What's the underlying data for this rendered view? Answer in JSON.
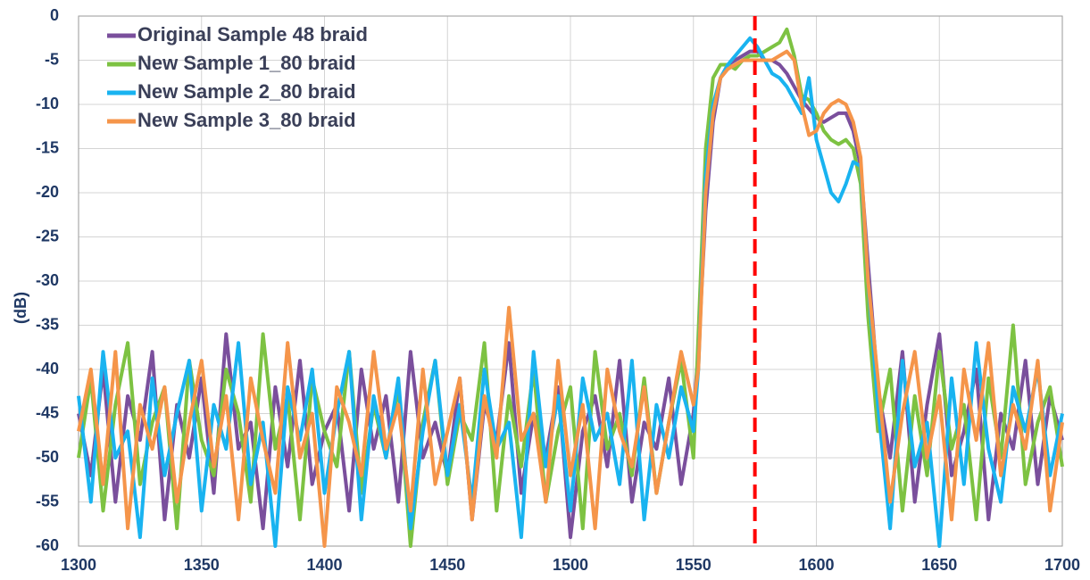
{
  "chart_data": {
    "type": "line",
    "y_label": "(dB)",
    "x": [
      1300,
      1305,
      1310,
      1315,
      1320,
      1325,
      1330,
      1335,
      1340,
      1345,
      1350,
      1355,
      1360,
      1365,
      1370,
      1375,
      1380,
      1385,
      1390,
      1395,
      1400,
      1405,
      1410,
      1415,
      1420,
      1425,
      1430,
      1435,
      1440,
      1445,
      1450,
      1455,
      1460,
      1465,
      1470,
      1475,
      1480,
      1485,
      1490,
      1495,
      1500,
      1505,
      1510,
      1515,
      1520,
      1525,
      1530,
      1535,
      1540,
      1545,
      1550,
      1552,
      1555,
      1558,
      1561,
      1564,
      1567,
      1570,
      1573,
      1576,
      1579,
      1582,
      1585,
      1588,
      1591,
      1594,
      1597,
      1600,
      1603,
      1606,
      1609,
      1612,
      1615,
      1618,
      1621,
      1625,
      1630,
      1635,
      1640,
      1645,
      1650,
      1655,
      1660,
      1665,
      1670,
      1675,
      1680,
      1685,
      1690,
      1695,
      1700
    ],
    "series": [
      {
        "name": "Original Sample 48 braid",
        "color": "#7a4f9c",
        "values": [
          -45,
          -52,
          -40,
          -55,
          -43,
          -48,
          -38,
          -57,
          -44,
          -50,
          -41,
          -54,
          -36,
          -49,
          -46,
          -58,
          -42,
          -51,
          -39,
          -53,
          -47,
          -44,
          -56,
          -40,
          -49,
          -43,
          -55,
          -38,
          -50,
          -46,
          -52,
          -41,
          -57,
          -44,
          -48,
          -37,
          -54,
          -45,
          -50,
          -42,
          -59,
          -47,
          -43,
          -51,
          -39,
          -55,
          -46,
          -49,
          -41,
          -53,
          -45,
          -38,
          -22,
          -12,
          -7,
          -5.5,
          -5,
          -4.5,
          -4,
          -4,
          -5,
          -5,
          -5.5,
          -6.5,
          -8,
          -9.5,
          -10.5,
          -11.5,
          -12,
          -11.5,
          -11,
          -11,
          -13,
          -17,
          -28,
          -42,
          -50,
          -38,
          -55,
          -44,
          -36,
          -52,
          -47,
          -40,
          -57,
          -45,
          -49,
          -39,
          -53,
          -43,
          -48
        ]
      },
      {
        "name": "New Sample 1_80 braid",
        "color": "#7dc242",
        "values": [
          -50,
          -41,
          -56,
          -44,
          -37,
          -53,
          -46,
          -42,
          -58,
          -39,
          -48,
          -52,
          -40,
          -45,
          -55,
          -36,
          -49,
          -43,
          -57,
          -41,
          -47,
          -51,
          -38,
          -54,
          -44,
          -50,
          -42,
          -60,
          -46,
          -39,
          -53,
          -45,
          -48,
          -37,
          -56,
          -43,
          -51,
          -40,
          -55,
          -47,
          -42,
          -58,
          -38,
          -49,
          -45,
          -52,
          -41,
          -54,
          -46,
          -39,
          -50,
          -36,
          -15,
          -7,
          -5.5,
          -5.5,
          -6,
          -5,
          -4.5,
          -4.5,
          -4,
          -3.5,
          -3,
          -1.5,
          -4.5,
          -9,
          -9.5,
          -11,
          -13,
          -14,
          -14.5,
          -14,
          -15,
          -19,
          -34,
          -47,
          -40,
          -56,
          -43,
          -52,
          -38,
          -49,
          -44,
          -57,
          -41,
          -50,
          -35,
          -53,
          -46,
          -42,
          -51
        ]
      },
      {
        "name": "New Sample 2_80 braid",
        "color": "#19b3f0",
        "values": [
          -43,
          -55,
          -38,
          -50,
          -47,
          -59,
          -41,
          -52,
          -45,
          -39,
          -56,
          -44,
          -49,
          -37,
          -53,
          -46,
          -60,
          -42,
          -48,
          -40,
          -54,
          -45,
          -38,
          -57,
          -43,
          -50,
          -41,
          -58,
          -47,
          -39,
          -52,
          -44,
          -55,
          -40,
          -49,
          -46,
          -59,
          -38,
          -51,
          -43,
          -56,
          -41,
          -48,
          -45,
          -53,
          -39,
          -57,
          -44,
          -50,
          -42,
          -47,
          -40,
          -18,
          -10,
          -7,
          -5.5,
          -4.5,
          -3.5,
          -2.5,
          -3.5,
          -5,
          -6.5,
          -7,
          -8,
          -9.5,
          -11,
          -7,
          -14,
          -17,
          -20,
          -21,
          -19,
          -16.5,
          -17,
          -30,
          -44,
          -58,
          -39,
          -51,
          -46,
          -60,
          -41,
          -53,
          -37,
          -49,
          -55,
          -42,
          -47,
          -40,
          -52,
          -45
        ]
      },
      {
        "name": "New Sample 3_80 braid",
        "color": "#f5954a",
        "values": [
          -47,
          -40,
          -53,
          -38,
          -58,
          -44,
          -49,
          -42,
          -55,
          -46,
          -39,
          -51,
          -43,
          -57,
          -41,
          -48,
          -54,
          -37,
          -50,
          -45,
          -60,
          -42,
          -46,
          -52,
          -38,
          -49,
          -44,
          -56,
          -40,
          -53,
          -47,
          -41,
          -57,
          -43,
          -50,
          -33,
          -48,
          -45,
          -55,
          -39,
          -52,
          -44,
          -58,
          -40,
          -47,
          -51,
          -42,
          -54,
          -46,
          -38,
          -44,
          -40,
          -20,
          -11,
          -7,
          -6,
          -5.5,
          -5,
          -5,
          -5,
          -5,
          -5,
          -4.5,
          -4,
          -5,
          -10,
          -13.5,
          -13,
          -11,
          -10,
          -9.5,
          -10,
          -12,
          -16,
          -30,
          -41,
          -55,
          -45,
          -38,
          -50,
          -43,
          -57,
          -40,
          -48,
          -37,
          -52,
          -44,
          -49,
          -39,
          -56,
          -46
        ]
      }
    ],
    "reference_line": {
      "x": 1575,
      "color": "#ff0000"
    },
    "xlim": [
      1300,
      1700
    ],
    "ylim": [
      -60,
      0
    ],
    "xticks": [
      1300,
      1350,
      1400,
      1450,
      1500,
      1550,
      1600,
      1650,
      1700
    ],
    "yticks": [
      0,
      -5,
      -10,
      -15,
      -20,
      -25,
      -30,
      -35,
      -40,
      -45,
      -50,
      -55,
      -60
    ],
    "grid": true
  }
}
